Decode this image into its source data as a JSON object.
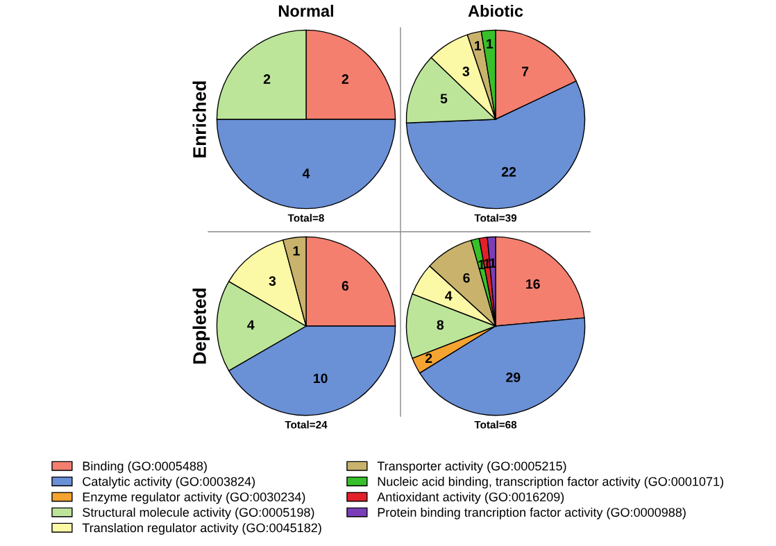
{
  "chart_data": [
    {
      "type": "pie",
      "title": "Normal",
      "ylabel": "Enriched",
      "values": [
        2,
        4,
        2
      ],
      "colors": [
        "#f47f6f",
        "#6a90d6",
        "#bce59a"
      ],
      "data_labels": true,
      "annotations": [
        "Total=8"
      ]
    },
    {
      "type": "pie",
      "title": "Abiotic",
      "values": [
        7,
        22,
        5,
        3,
        1,
        1
      ],
      "colors": [
        "#f47f6f",
        "#6a90d6",
        "#bce59a",
        "#fbf8a6",
        "#c9b36c",
        "#38c02b"
      ],
      "data_labels": true,
      "annotations": [
        "Total=39"
      ]
    },
    {
      "type": "pie",
      "ylabel": "Depleted",
      "values": [
        6,
        10,
        4,
        3,
        1
      ],
      "colors": [
        "#f47f6f",
        "#6a90d6",
        "#bce59a",
        "#fbf8a6",
        "#c9b36c"
      ],
      "data_labels": true,
      "annotations": [
        "Total=24"
      ]
    },
    {
      "type": "pie",
      "categories": [
        "Binding (GO:0005488)",
        "Catalytic activity (GO:0003824)",
        "Enzyme regulator activity (GO:0030234)",
        "Structural molecule activity (GO:0005198)",
        "Translation regulator activity (GO:0045182)",
        "Transporter activity (GO:0005215)",
        "Nucleic acid binding, transcription factor activity (GO:0001071)",
        "Antioxidant activity (GO:0016209)",
        "Protein binding trancription factor activity (GO:0000988)"
      ],
      "values": [
        16,
        29,
        2,
        8,
        4,
        6,
        1,
        1,
        1
      ],
      "colors": [
        "#f47f6f",
        "#6a90d6",
        "#f5a431",
        "#bce59a",
        "#fbf8a6",
        "#c9b36c",
        "#38c02b",
        "#e3202a",
        "#7a3fb8"
      ],
      "data_labels": true,
      "legend": "bottom",
      "annotations": [
        "Total=68"
      ]
    }
  ]
}
